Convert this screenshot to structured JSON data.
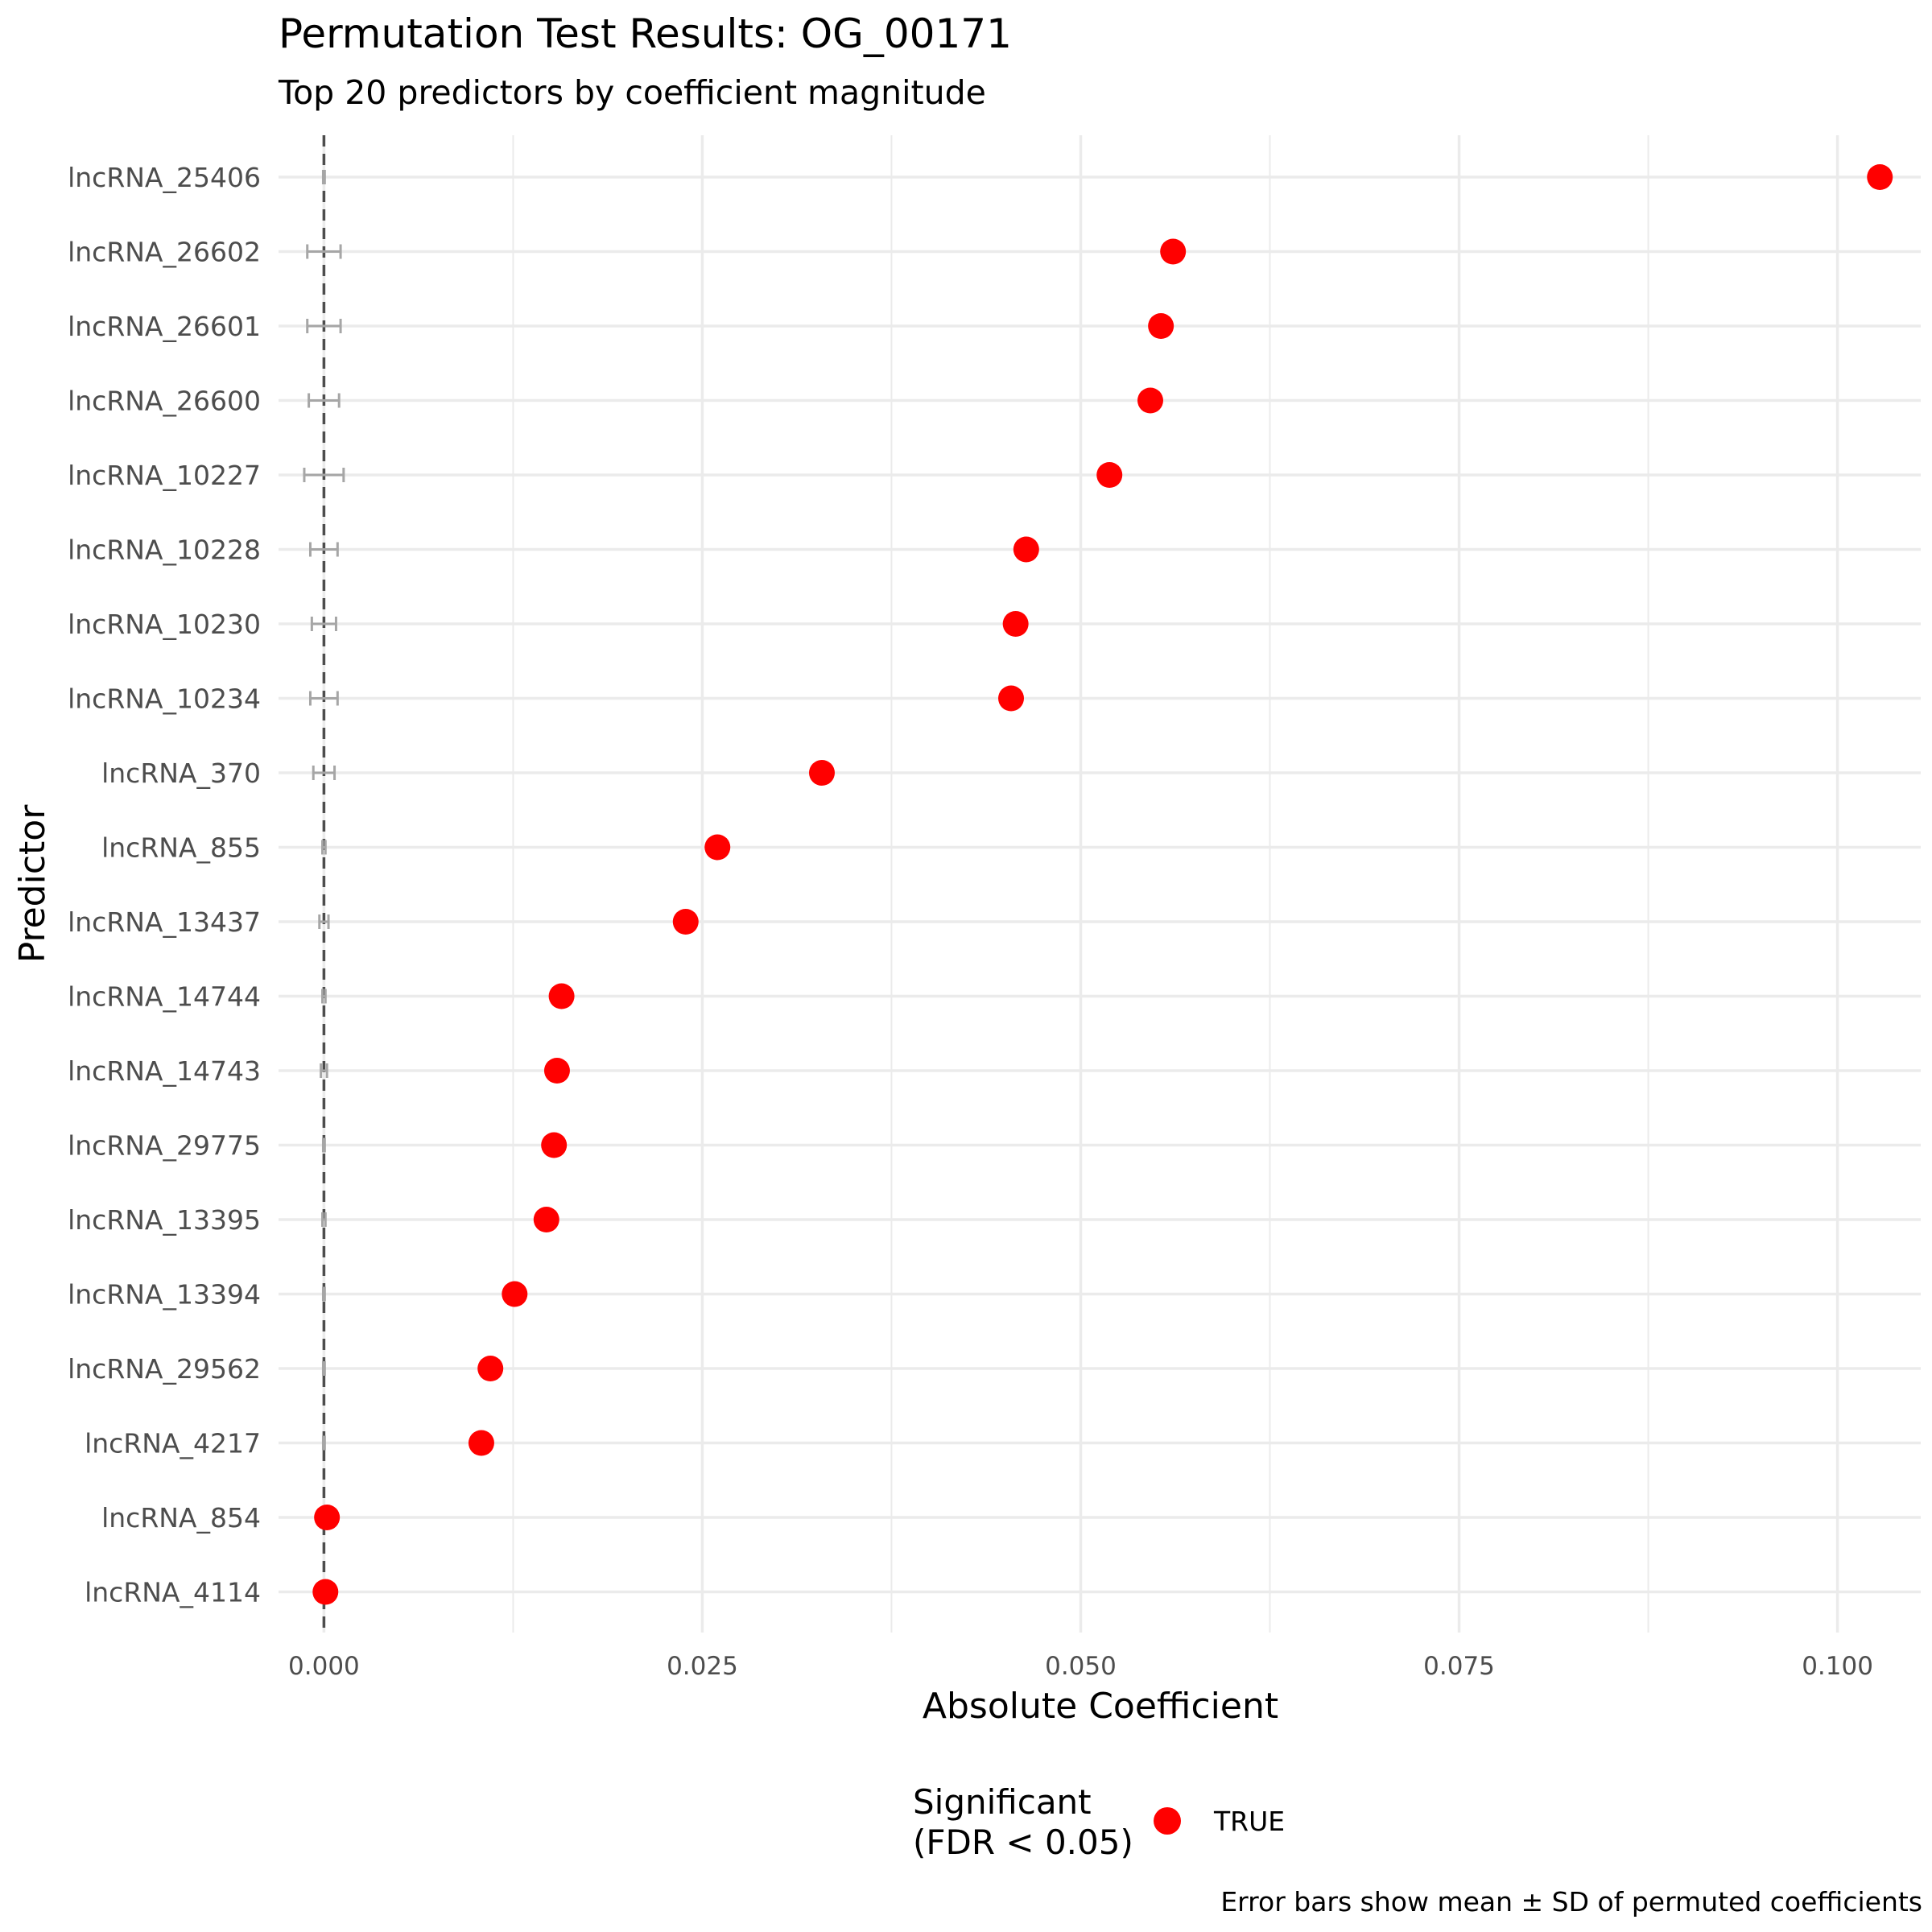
{
  "chart_data": {
    "type": "scatter",
    "title": "Permutation Test Results: OG_00171",
    "subtitle": "Top 20 predictors by coefficient magnitude",
    "xlabel": "Absolute Coefficient",
    "ylabel": "Predictor",
    "caption": "Error bars show mean ± SD of permuted coefficients",
    "xlim": [
      -0.003,
      0.1055
    ],
    "x_ticks": [
      0.0,
      0.025,
      0.05,
      0.075,
      0.1
    ],
    "x_tick_labels": [
      "0.000",
      "0.025",
      "0.050",
      "0.075",
      "0.100"
    ],
    "grid": true,
    "reference_line": 0.0,
    "legend": {
      "title_lines": [
        "Significant",
        "(FDR < 0.05)"
      ],
      "entries": [
        {
          "label": "TRUE",
          "color": "#ff0000"
        }
      ],
      "position": "bottom"
    },
    "colors": {
      "significant": "#ff0000",
      "errorbar": "#a6a6a6",
      "grid": "#ebebeb",
      "refline": "#4d4d4d"
    },
    "predictors": [
      {
        "name": "lncRNA_25406",
        "coef": 0.1028,
        "perm_mean": 0.0,
        "perm_sd": 5e-05
      },
      {
        "name": "lncRNA_26602",
        "coef": 0.0561,
        "perm_mean": 0.0,
        "perm_sd": 0.0011
      },
      {
        "name": "lncRNA_26601",
        "coef": 0.0553,
        "perm_mean": 0.0,
        "perm_sd": 0.0011
      },
      {
        "name": "lncRNA_26600",
        "coef": 0.0546,
        "perm_mean": 0.0,
        "perm_sd": 0.001
      },
      {
        "name": "lncRNA_10227",
        "coef": 0.0519,
        "perm_mean": 0.0,
        "perm_sd": 0.0013
      },
      {
        "name": "lncRNA_10228",
        "coef": 0.0464,
        "perm_mean": 0.0,
        "perm_sd": 0.0009
      },
      {
        "name": "lncRNA_10230",
        "coef": 0.0457,
        "perm_mean": 0.0,
        "perm_sd": 0.0008
      },
      {
        "name": "lncRNA_10234",
        "coef": 0.0454,
        "perm_mean": 0.0,
        "perm_sd": 0.0009
      },
      {
        "name": "lncRNA_370",
        "coef": 0.0329,
        "perm_mean": 0.0,
        "perm_sd": 0.0007
      },
      {
        "name": "lncRNA_855",
        "coef": 0.026,
        "perm_mean": 0.0,
        "perm_sd": 0.0001
      },
      {
        "name": "lncRNA_13437",
        "coef": 0.0239,
        "perm_mean": 0.0,
        "perm_sd": 0.0003
      },
      {
        "name": "lncRNA_14744",
        "coef": 0.0157,
        "perm_mean": 0.0,
        "perm_sd": 0.0001
      },
      {
        "name": "lncRNA_14743",
        "coef": 0.0154,
        "perm_mean": 0.0,
        "perm_sd": 0.0002
      },
      {
        "name": "lncRNA_29775",
        "coef": 0.0152,
        "perm_mean": 0.0,
        "perm_sd": 5e-05
      },
      {
        "name": "lncRNA_13395",
        "coef": 0.0147,
        "perm_mean": 0.0,
        "perm_sd": 0.0001
      },
      {
        "name": "lncRNA_13394",
        "coef": 0.0126,
        "perm_mean": 0.0,
        "perm_sd": 5e-05
      },
      {
        "name": "lncRNA_29562",
        "coef": 0.011,
        "perm_mean": 0.0,
        "perm_sd": 5e-05
      },
      {
        "name": "lncRNA_4217",
        "coef": 0.0104,
        "perm_mean": 0.0,
        "perm_sd": 5e-05
      },
      {
        "name": "lncRNA_854",
        "coef": 0.0002,
        "perm_mean": 0.0,
        "perm_sd": 5e-05
      },
      {
        "name": "lncRNA_4114",
        "coef": 0.0001,
        "perm_mean": 0.0,
        "perm_sd": 5e-05
      }
    ]
  }
}
